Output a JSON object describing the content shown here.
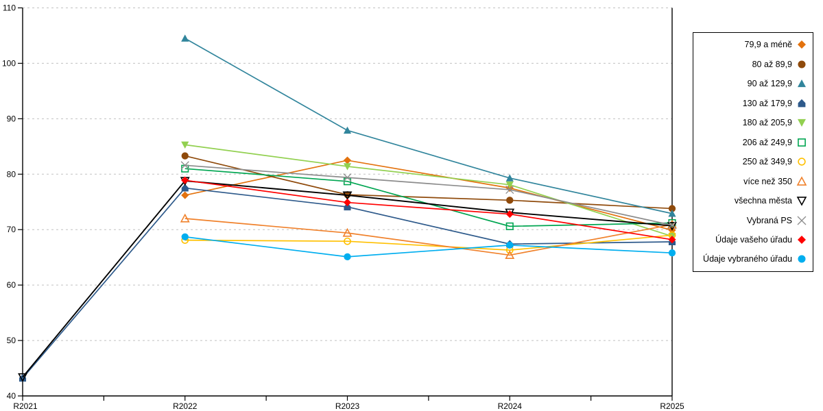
{
  "chart_data": {
    "type": "line",
    "title": "",
    "xlabel": "",
    "ylabel": "",
    "categories": [
      "R2021",
      "R2022",
      "R2023",
      "R2024",
      "R2025"
    ],
    "ylim": [
      40,
      110
    ],
    "ytick_step": 10,
    "ytick_labels": [
      "40",
      "50",
      "60",
      "70",
      "80",
      "90",
      "100",
      "110"
    ],
    "grid": "horizontal-dashed",
    "grid_color": "#c0c0c0",
    "axis_color": "#000000",
    "legend_position": "right-box",
    "series": [
      {
        "name": "79,9 a méně",
        "marker": "diamond",
        "filled": true,
        "color": "#e3720e",
        "values": [
          null,
          76.2,
          82.5,
          77.5,
          69.9
        ]
      },
      {
        "name": "80 až 89,9",
        "marker": "circle",
        "filled": true,
        "color": "#8f4a0b",
        "values": [
          null,
          83.3,
          76.3,
          75.3,
          73.8
        ]
      },
      {
        "name": "90 až 129,9",
        "marker": "triangle-up",
        "filled": true,
        "color": "#31859c",
        "values": [
          null,
          104.5,
          87.9,
          79.3,
          72.9
        ]
      },
      {
        "name": "130 až 179,9",
        "marker": "pentagon-up",
        "filled": true,
        "color": "#2e5a8b",
        "values": [
          43.2,
          77.5,
          74.1,
          67.4,
          67.8
        ]
      },
      {
        "name": "180 až 205,9",
        "marker": "triangle-down",
        "filled": true,
        "color": "#92d050",
        "values": [
          null,
          85.3,
          81.4,
          78.1,
          68.8
        ]
      },
      {
        "name": "206 až 249,9",
        "marker": "square",
        "filled": false,
        "color": "#00a551",
        "values": [
          null,
          81.0,
          78.7,
          70.6,
          71.2
        ]
      },
      {
        "name": "250 až 349,9",
        "marker": "circle",
        "filled": false,
        "color": "#ffc000",
        "values": [
          null,
          68.1,
          67.9,
          66.3,
          69.0
        ]
      },
      {
        "name": "více než 350",
        "marker": "triangle-up",
        "filled": false,
        "color": "#f0812b",
        "values": [
          null,
          72.0,
          69.4,
          65.4,
          70.9
        ]
      },
      {
        "name": "všechna města",
        "marker": "triangle-down",
        "filled": false,
        "color": "#000000",
        "values": [
          43.4,
          78.8,
          76.2,
          73.1,
          70.7
        ]
      },
      {
        "name": "Vybraná PS",
        "marker": "x",
        "filled": false,
        "color": "#8c8c8c",
        "values": [
          null,
          81.6,
          79.4,
          77.2,
          70.8
        ]
      },
      {
        "name": "Údaje vašeho úřadu",
        "marker": "diamond",
        "filled": true,
        "color": "#ff0000",
        "values": [
          null,
          78.9,
          74.9,
          72.8,
          68.2
        ]
      },
      {
        "name": "Údaje vybraného úřadu",
        "marker": "circle",
        "filled": true,
        "color": "#00aeef",
        "values": [
          null,
          68.7,
          65.1,
          67.2,
          65.8
        ]
      }
    ]
  }
}
